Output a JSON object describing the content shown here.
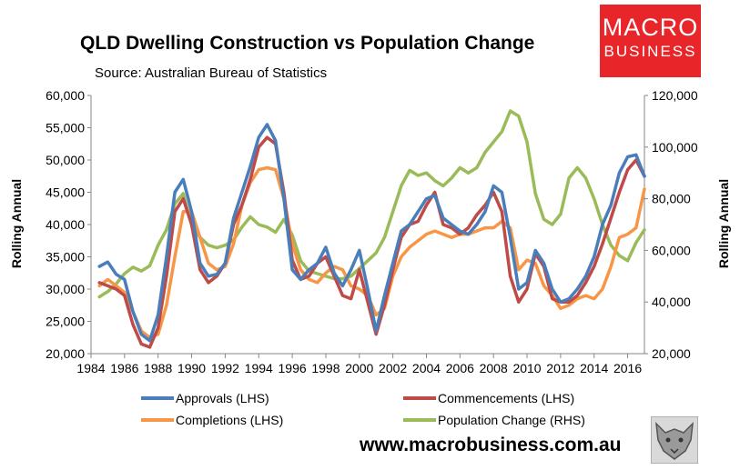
{
  "header": {
    "title": "QLD Dwelling Construction vs Population Change",
    "subtitle": "Source: Australian Bureau of Statistics"
  },
  "logo": {
    "line1": "MACRO",
    "line2": "BUSINESS"
  },
  "footer": {
    "url": "www.macrobusiness.com.au"
  },
  "colors": {
    "approvals": "#4a7ebb",
    "commencements": "#be4b48",
    "completions": "#f79646",
    "population": "#9bbb59"
  },
  "chart_data": {
    "type": "line",
    "title": "QLD Dwelling Construction vs Population Change",
    "subtitle": "Source: Australian Bureau of Statistics",
    "ylabel": "Rolling Annual",
    "y2label": "Rolling Annual",
    "ylim": [
      20000,
      60000
    ],
    "y2lim": [
      20000,
      120000
    ],
    "xlim": [
      1984,
      2017
    ],
    "x_ticks": [
      "1984",
      "1986",
      "1988",
      "1990",
      "1992",
      "1994",
      "1996",
      "1998",
      "2000",
      "2002",
      "2004",
      "2006",
      "2008",
      "2010",
      "2012",
      "2014",
      "2016"
    ],
    "y_ticks": [
      "20,000",
      "25,000",
      "30,000",
      "35,000",
      "40,000",
      "45,000",
      "50,000",
      "55,000",
      "60,000"
    ],
    "y2_ticks": [
      "20,000",
      "40,000",
      "60,000",
      "80,000",
      "100,000",
      "120,000"
    ],
    "grid": false,
    "legend": "bottom",
    "series": [
      {
        "name": "Approvals (LHS)",
        "axis": "left",
        "color": "#4a7ebb",
        "x": [
          1984.5,
          1985,
          1985.5,
          1986,
          1986.5,
          1987,
          1987.5,
          1988,
          1988.5,
          1989,
          1989.5,
          1990,
          1990.5,
          1991,
          1991.5,
          1992,
          1992.5,
          1993,
          1993.5,
          1994,
          1994.5,
          1995,
          1995.5,
          1996,
          1996.5,
          1997,
          1997.5,
          1998,
          1998.5,
          1999,
          1999.5,
          2000,
          2000.5,
          2001,
          2001.5,
          2002,
          2002.5,
          2003,
          2003.5,
          2004,
          2004.5,
          2005,
          2005.5,
          2006,
          2006.5,
          2007,
          2007.5,
          2008,
          2008.5,
          2009,
          2009.5,
          2010,
          2010.5,
          2011,
          2011.5,
          2012,
          2012.5,
          2013,
          2013.5,
          2014,
          2014.5,
          2015,
          2015.5,
          2016,
          2016.5,
          2017
        ],
        "y": [
          33500,
          34200,
          32300,
          31500,
          26500,
          23000,
          22000,
          26000,
          35000,
          45000,
          47000,
          42000,
          34000,
          32000,
          32300,
          34000,
          41000,
          45000,
          49000,
          53500,
          55500,
          53000,
          44000,
          33000,
          31500,
          33000,
          34000,
          36500,
          32500,
          30500,
          33000,
          36000,
          30000,
          23500,
          29000,
          34000,
          39000,
          40000,
          42000,
          44000,
          44500,
          41000,
          40000,
          39000,
          38500,
          40000,
          42000,
          46000,
          45000,
          38000,
          30000,
          31000,
          36000,
          34000,
          30000,
          28000,
          28500,
          30000,
          32000,
          35000,
          40000,
          43000,
          48000,
          50500,
          50800,
          47500
        ]
      },
      {
        "name": "Commencements (LHS)",
        "axis": "left",
        "color": "#be4b48",
        "x": [
          1984.5,
          1985,
          1985.5,
          1986,
          1986.5,
          1987,
          1987.5,
          1988,
          1988.5,
          1989,
          1989.5,
          1990,
          1990.5,
          1991,
          1991.5,
          1992,
          1992.5,
          1993,
          1993.5,
          1994,
          1994.5,
          1995,
          1995.5,
          1996,
          1996.5,
          1997,
          1997.5,
          1998,
          1998.5,
          1999,
          1999.5,
          2000,
          2000.5,
          2001,
          2001.5,
          2002,
          2002.5,
          2003,
          2003.5,
          2004,
          2004.5,
          2005,
          2005.5,
          2006,
          2006.5,
          2007,
          2007.5,
          2008,
          2008.5,
          2009,
          2009.5,
          2010,
          2010.5,
          2011,
          2011.5,
          2012,
          2012.5,
          2013,
          2013.5,
          2014,
          2014.5,
          2015,
          2015.5,
          2016,
          2016.5,
          2017
        ],
        "y": [
          31000,
          30500,
          30000,
          29000,
          24500,
          21500,
          21000,
          24000,
          32000,
          42000,
          44000,
          40000,
          33000,
          31000,
          32000,
          34000,
          40000,
          43000,
          47000,
          52000,
          53500,
          52500,
          45000,
          34500,
          31500,
          32000,
          34000,
          35000,
          32000,
          29000,
          28500,
          33000,
          28000,
          23000,
          27500,
          33000,
          38000,
          40000,
          40500,
          43000,
          45000,
          40000,
          39500,
          38500,
          39500,
          41500,
          43000,
          45000,
          42000,
          32000,
          28000,
          30000,
          35500,
          33500,
          28500,
          28000,
          28000,
          29000,
          31000,
          33500,
          37000,
          41000,
          45000,
          48500,
          50000,
          47500
        ]
      },
      {
        "name": "Completions (LHS)",
        "axis": "left",
        "color": "#f79646",
        "x": [
          1984.5,
          1985,
          1985.5,
          1986,
          1986.5,
          1987,
          1987.5,
          1988,
          1988.5,
          1989,
          1989.5,
          1990,
          1990.5,
          1991,
          1991.5,
          1992,
          1992.5,
          1993,
          1993.5,
          1994,
          1994.5,
          1995,
          1995.5,
          1996,
          1996.5,
          1997,
          1997.5,
          1998,
          1998.5,
          1999,
          1999.5,
          2000,
          2000.5,
          2001,
          2001.5,
          2002,
          2002.5,
          2003,
          2003.5,
          2004,
          2004.5,
          2005,
          2005.5,
          2006,
          2006.5,
          2007,
          2007.5,
          2008,
          2008.5,
          2009,
          2009.5,
          2010,
          2010.5,
          2011,
          2011.5,
          2012,
          2012.5,
          2013,
          2013.5,
          2014,
          2014.5,
          2015,
          2015.5,
          2016,
          2016.5,
          2017
        ],
        "y": [
          30500,
          31500,
          30500,
          29500,
          26500,
          23500,
          22500,
          23000,
          27500,
          35000,
          42000,
          42000,
          38000,
          34000,
          33000,
          33500,
          37000,
          43000,
          46500,
          48500,
          48800,
          48500,
          44000,
          37000,
          33000,
          31500,
          31000,
          32500,
          33500,
          33000,
          30500,
          30000,
          29000,
          26000,
          27000,
          32000,
          35000,
          36500,
          37500,
          38500,
          39000,
          38500,
          38000,
          38500,
          38500,
          39000,
          39500,
          39500,
          40500,
          39500,
          33000,
          34500,
          34000,
          30500,
          29000,
          27000,
          27500,
          28500,
          29000,
          28500,
          30000,
          33500,
          38000,
          38500,
          39500,
          45500
        ]
      },
      {
        "name": "Population Change (RHS)",
        "axis": "right",
        "color": "#9bbb59",
        "x": [
          1984.5,
          1985,
          1985.5,
          1986,
          1986.5,
          1987,
          1987.5,
          1988,
          1988.5,
          1989,
          1989.5,
          1990,
          1990.5,
          1991,
          1991.5,
          1992,
          1992.5,
          1993,
          1993.5,
          1994,
          1994.5,
          1995,
          1995.5,
          1996,
          1996.5,
          1997,
          1997.5,
          1998,
          1998.5,
          1999,
          1999.5,
          2000,
          2000.5,
          2001,
          2001.5,
          2002,
          2002.5,
          2003,
          2003.5,
          2004,
          2004.5,
          2005,
          2005.5,
          2006,
          2006.5,
          2007,
          2007.5,
          2008,
          2008.5,
          2009,
          2009.5,
          2010,
          2010.5,
          2011,
          2011.5,
          2012,
          2012.5,
          2013,
          2013.5,
          2014,
          2014.5,
          2015,
          2015.5,
          2016,
          2016.5,
          2017
        ],
        "y": [
          42000,
          44000,
          47000,
          51000,
          53500,
          52000,
          54000,
          62000,
          68000,
          78000,
          82000,
          70000,
          65000,
          62000,
          61000,
          62000,
          64000,
          69000,
          73000,
          70000,
          69000,
          67000,
          72000,
          66000,
          56000,
          52000,
          51000,
          50000,
          49000,
          49000,
          50000,
          53000,
          56000,
          59000,
          65000,
          75000,
          85000,
          91000,
          89000,
          90000,
          87000,
          85000,
          88000,
          92000,
          90000,
          92000,
          98000,
          102000,
          106000,
          114000,
          112000,
          102000,
          82000,
          72000,
          70000,
          74000,
          88000,
          92000,
          88000,
          80000,
          70000,
          62000,
          58000,
          56000,
          63000,
          68000
        ]
      }
    ]
  }
}
